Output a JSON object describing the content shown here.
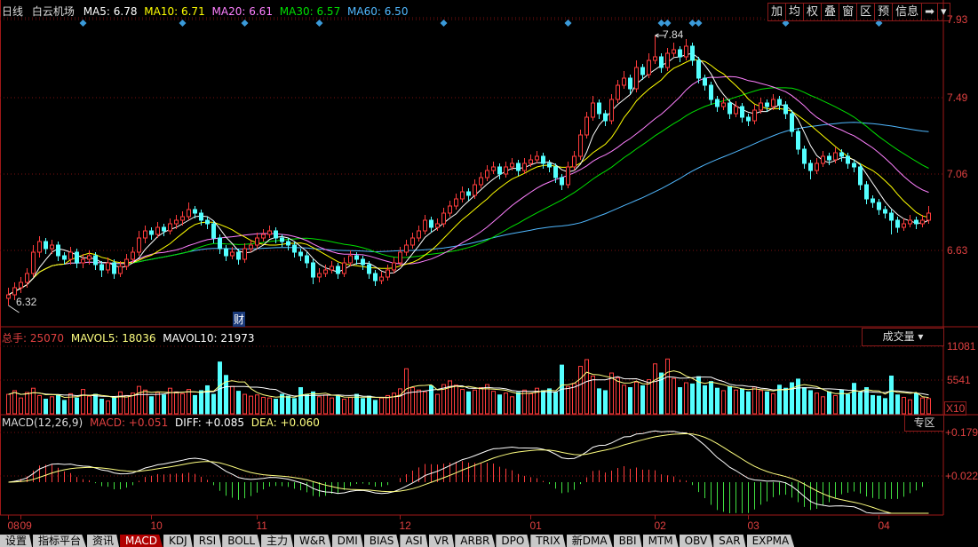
{
  "header": {
    "period": "日线",
    "stock_name": "白云机场",
    "ma5": "MA5: 6.78",
    "ma10": "MA10: 6.71",
    "ma20": "MA20: 6.61",
    "ma30": "MA30: 6.57",
    "ma60": "MA60: 6.50"
  },
  "toolbar": [
    "加",
    "均",
    "权",
    "叠",
    "窗",
    "区",
    "预",
    "信息",
    "➡",
    "▾"
  ],
  "volume_header": {
    "total": "总手: 25070",
    "mavol5": "MAVOL5: 18036",
    "mavol10": "MAVOL10: 21973",
    "selector": "成交量 ▾"
  },
  "macd_header": {
    "name": "MACD(12,26,9)",
    "macd": "MACD: +0.051",
    "diff": "DIFF: +0.085",
    "dea": "DEA: +0.060",
    "zone_button": "专区"
  },
  "annotations": {
    "high": "7.84",
    "low": "6.32",
    "news_marker": "财"
  },
  "tabs": [
    {
      "label": "设置",
      "active": false
    },
    {
      "label": "指标平台",
      "active": false
    },
    {
      "label": "资讯",
      "active": false
    },
    {
      "label": "MACD",
      "active": true
    },
    {
      "label": "KDJ",
      "active": false
    },
    {
      "label": "RSI",
      "active": false
    },
    {
      "label": "BOLL",
      "active": false
    },
    {
      "label": "主力",
      "active": false
    },
    {
      "label": "W&R",
      "active": false
    },
    {
      "label": "DMI",
      "active": false
    },
    {
      "label": "BIAS",
      "active": false
    },
    {
      "label": "ASI",
      "active": false
    },
    {
      "label": "VR",
      "active": false
    },
    {
      "label": "ARBR",
      "active": false
    },
    {
      "label": "DPO",
      "active": false
    },
    {
      "label": "TRIX",
      "active": false
    },
    {
      "label": "新DMA",
      "active": false
    },
    {
      "label": "BBI",
      "active": false
    },
    {
      "label": "MTM",
      "active": false
    },
    {
      "label": "OBV",
      "active": false
    },
    {
      "label": "SAR",
      "active": false
    },
    {
      "label": "EXPMA",
      "active": false
    }
  ],
  "colors": {
    "up": "#ff3c3c",
    "down": "#54ffff",
    "ma5": "#ffffff",
    "ma10": "#ffff00",
    "ma20": "#ff80ff",
    "ma30": "#00e000",
    "ma60": "#50b8ff",
    "grid": "#7a1010",
    "axis_text": "#e04040",
    "marker": "#3a9ad9"
  },
  "chart_data": {
    "type": "candlestick",
    "price_axis": {
      "ticks": [
        "7.93",
        "7.49",
        "7.06",
        "6.63"
      ],
      "range": [
        6.2,
        7.93
      ]
    },
    "volume_axis": {
      "ticks": [
        "11081",
        "5541"
      ],
      "unit": "X10",
      "range": [
        0,
        11081
      ]
    },
    "macd_axis": {
      "ticks": [
        "+0.179",
        "+0.022"
      ],
      "range": [
        -0.12,
        0.179
      ]
    },
    "month_labels": [
      {
        "label": "08",
        "index": 0
      },
      {
        "label": "09",
        "index": 2
      },
      {
        "label": "10",
        "index": 23
      },
      {
        "label": "11",
        "index": 40
      },
      {
        "label": "12",
        "index": 63
      },
      {
        "label": "01",
        "index": 84
      },
      {
        "label": "02",
        "index": 104
      },
      {
        "label": "03",
        "index": 119
      },
      {
        "label": "04",
        "index": 140
      }
    ],
    "marker_indices": [
      12,
      28,
      38,
      50,
      70,
      90,
      105,
      106,
      110,
      111,
      125,
      140
    ],
    "news_marker_index": 38,
    "high_index": 104,
    "low_index": 0,
    "ma_periods": [
      5,
      10,
      20,
      30,
      60
    ],
    "ohlc": [
      [
        6.36,
        6.42,
        6.32,
        6.38
      ],
      [
        6.38,
        6.45,
        6.35,
        6.42
      ],
      [
        6.42,
        6.48,
        6.39,
        6.45
      ],
      [
        6.45,
        6.53,
        6.42,
        6.5
      ],
      [
        6.5,
        6.66,
        6.48,
        6.62
      ],
      [
        6.62,
        6.71,
        6.59,
        6.68
      ],
      [
        6.68,
        6.7,
        6.61,
        6.64
      ],
      [
        6.64,
        6.69,
        6.61,
        6.66
      ],
      [
        6.66,
        6.68,
        6.57,
        6.6
      ],
      [
        6.6,
        6.62,
        6.55,
        6.58
      ],
      [
        6.58,
        6.65,
        6.55,
        6.62
      ],
      [
        6.62,
        6.64,
        6.53,
        6.56
      ],
      [
        6.56,
        6.61,
        6.53,
        6.58
      ],
      [
        6.58,
        6.63,
        6.55,
        6.6
      ],
      [
        6.6,
        6.62,
        6.52,
        6.55
      ],
      [
        6.55,
        6.57,
        6.48,
        6.52
      ],
      [
        6.52,
        6.59,
        6.5,
        6.56
      ],
      [
        6.56,
        6.58,
        6.47,
        6.5
      ],
      [
        6.5,
        6.57,
        6.48,
        6.54
      ],
      [
        6.54,
        6.61,
        6.52,
        6.58
      ],
      [
        6.58,
        6.65,
        6.56,
        6.62
      ],
      [
        6.62,
        6.74,
        6.6,
        6.7
      ],
      [
        6.7,
        6.77,
        6.67,
        6.74
      ],
      [
        6.74,
        6.76,
        6.69,
        6.72
      ],
      [
        6.72,
        6.79,
        6.7,
        6.76
      ],
      [
        6.76,
        6.78,
        6.71,
        6.74
      ],
      [
        6.74,
        6.81,
        6.72,
        6.78
      ],
      [
        6.78,
        6.83,
        6.75,
        6.8
      ],
      [
        6.8,
        6.85,
        6.77,
        6.82
      ],
      [
        6.82,
        6.9,
        6.8,
        6.86
      ],
      [
        6.86,
        6.88,
        6.81,
        6.84
      ],
      [
        6.84,
        6.86,
        6.77,
        6.8
      ],
      [
        6.8,
        6.82,
        6.75,
        6.78
      ],
      [
        6.78,
        6.8,
        6.67,
        6.7
      ],
      [
        6.7,
        6.72,
        6.61,
        6.64
      ],
      [
        6.64,
        6.66,
        6.57,
        6.6
      ],
      [
        6.6,
        6.65,
        6.58,
        6.62
      ],
      [
        6.62,
        6.64,
        6.55,
        6.58
      ],
      [
        6.58,
        6.67,
        6.56,
        6.64
      ],
      [
        6.64,
        6.69,
        6.62,
        6.66
      ],
      [
        6.66,
        6.73,
        6.64,
        6.7
      ],
      [
        6.7,
        6.75,
        6.68,
        6.72
      ],
      [
        6.72,
        6.77,
        6.7,
        6.74
      ],
      [
        6.74,
        6.76,
        6.67,
        6.7
      ],
      [
        6.7,
        6.72,
        6.65,
        6.68
      ],
      [
        6.68,
        6.7,
        6.63,
        6.66
      ],
      [
        6.66,
        6.68,
        6.59,
        6.62
      ],
      [
        6.62,
        6.64,
        6.57,
        6.6
      ],
      [
        6.6,
        6.62,
        6.53,
        6.56
      ],
      [
        6.56,
        6.58,
        6.44,
        6.48
      ],
      [
        6.48,
        6.53,
        6.45,
        6.5
      ],
      [
        6.5,
        6.55,
        6.48,
        6.52
      ],
      [
        6.52,
        6.57,
        6.5,
        6.54
      ],
      [
        6.54,
        6.56,
        6.47,
        6.5
      ],
      [
        6.5,
        6.59,
        6.48,
        6.56
      ],
      [
        6.56,
        6.63,
        6.54,
        6.6
      ],
      [
        6.6,
        6.62,
        6.55,
        6.58
      ],
      [
        6.58,
        6.6,
        6.52,
        6.55
      ],
      [
        6.55,
        6.57,
        6.47,
        6.5
      ],
      [
        6.5,
        6.52,
        6.43,
        6.46
      ],
      [
        6.46,
        6.51,
        6.44,
        6.48
      ],
      [
        6.48,
        6.55,
        6.46,
        6.52
      ],
      [
        6.52,
        6.59,
        6.5,
        6.56
      ],
      [
        6.56,
        6.65,
        6.54,
        6.62
      ],
      [
        6.62,
        6.69,
        6.6,
        6.66
      ],
      [
        6.66,
        6.73,
        6.64,
        6.7
      ],
      [
        6.7,
        6.77,
        6.68,
        6.74
      ],
      [
        6.74,
        6.83,
        6.72,
        6.8
      ],
      [
        6.8,
        6.82,
        6.73,
        6.76
      ],
      [
        6.76,
        6.81,
        6.74,
        6.78
      ],
      [
        6.78,
        6.87,
        6.76,
        6.84
      ],
      [
        6.84,
        6.91,
        6.82,
        6.88
      ],
      [
        6.88,
        6.95,
        6.86,
        6.92
      ],
      [
        6.92,
        6.99,
        6.9,
        6.96
      ],
      [
        6.96,
        6.98,
        6.91,
        6.94
      ],
      [
        6.94,
        7.03,
        6.92,
        7.0
      ],
      [
        7.0,
        7.07,
        6.98,
        7.04
      ],
      [
        7.04,
        7.11,
        7.02,
        7.08
      ],
      [
        7.08,
        7.13,
        7.06,
        7.1
      ],
      [
        7.1,
        7.12,
        7.03,
        7.06
      ],
      [
        7.06,
        7.13,
        7.04,
        7.1
      ],
      [
        7.1,
        7.15,
        7.08,
        7.12
      ],
      [
        7.12,
        7.14,
        7.05,
        7.08
      ],
      [
        7.08,
        7.15,
        7.06,
        7.12
      ],
      [
        7.12,
        7.17,
        7.1,
        7.14
      ],
      [
        7.14,
        7.19,
        7.12,
        7.16
      ],
      [
        7.16,
        7.18,
        7.09,
        7.12
      ],
      [
        7.12,
        7.14,
        7.07,
        7.1
      ],
      [
        7.1,
        7.12,
        7.01,
        7.04
      ],
      [
        7.04,
        7.06,
        6.97,
        7.0
      ],
      [
        7.0,
        7.13,
        6.98,
        7.1
      ],
      [
        7.1,
        7.19,
        7.08,
        7.16
      ],
      [
        7.16,
        7.31,
        7.14,
        7.28
      ],
      [
        7.28,
        7.41,
        7.26,
        7.38
      ],
      [
        7.38,
        7.5,
        7.36,
        7.46
      ],
      [
        7.46,
        7.48,
        7.37,
        7.4
      ],
      [
        7.4,
        7.42,
        7.33,
        7.36
      ],
      [
        7.36,
        7.51,
        7.34,
        7.48
      ],
      [
        7.48,
        7.59,
        7.46,
        7.56
      ],
      [
        7.56,
        7.64,
        7.54,
        7.6
      ],
      [
        7.6,
        7.62,
        7.51,
        7.54
      ],
      [
        7.54,
        7.7,
        7.52,
        7.66
      ],
      [
        7.66,
        7.68,
        7.59,
        7.62
      ],
      [
        7.62,
        7.74,
        7.6,
        7.7
      ],
      [
        7.7,
        7.84,
        7.68,
        7.72
      ],
      [
        7.72,
        7.74,
        7.63,
        7.66
      ],
      [
        7.66,
        7.77,
        7.64,
        7.74
      ],
      [
        7.74,
        7.8,
        7.72,
        7.76
      ],
      [
        7.76,
        7.78,
        7.69,
        7.72
      ],
      [
        7.72,
        7.82,
        7.7,
        7.78
      ],
      [
        7.78,
        7.8,
        7.67,
        7.7
      ],
      [
        7.7,
        7.72,
        7.57,
        7.6
      ],
      [
        7.6,
        7.62,
        7.53,
        7.56
      ],
      [
        7.56,
        7.58,
        7.45,
        7.48
      ],
      [
        7.48,
        7.5,
        7.41,
        7.44
      ],
      [
        7.44,
        7.49,
        7.42,
        7.46
      ],
      [
        7.46,
        7.48,
        7.37,
        7.4
      ],
      [
        7.4,
        7.47,
        7.38,
        7.44
      ],
      [
        7.44,
        7.46,
        7.35,
        7.38
      ],
      [
        7.38,
        7.4,
        7.33,
        7.36
      ],
      [
        7.36,
        7.45,
        7.34,
        7.42
      ],
      [
        7.42,
        7.49,
        7.4,
        7.46
      ],
      [
        7.46,
        7.48,
        7.41,
        7.44
      ],
      [
        7.44,
        7.51,
        7.42,
        7.48
      ],
      [
        7.48,
        7.5,
        7.42,
        7.45
      ],
      [
        7.45,
        7.47,
        7.37,
        7.4
      ],
      [
        7.4,
        7.42,
        7.27,
        7.3
      ],
      [
        7.3,
        7.32,
        7.17,
        7.2
      ],
      [
        7.2,
        7.22,
        7.09,
        7.12
      ],
      [
        7.12,
        7.14,
        7.03,
        7.08
      ],
      [
        7.08,
        7.15,
        7.06,
        7.12
      ],
      [
        7.12,
        7.19,
        7.1,
        7.16
      ],
      [
        7.16,
        7.18,
        7.11,
        7.14
      ],
      [
        7.14,
        7.21,
        7.12,
        7.18
      ],
      [
        7.18,
        7.2,
        7.13,
        7.16
      ],
      [
        7.16,
        7.18,
        7.09,
        7.12
      ],
      [
        7.12,
        7.14,
        7.07,
        7.1
      ],
      [
        7.1,
        7.12,
        6.97,
        7.0
      ],
      [
        7.0,
        7.02,
        6.89,
        6.92
      ],
      [
        6.92,
        6.94,
        6.87,
        6.9
      ],
      [
        6.9,
        6.92,
        6.83,
        6.86
      ],
      [
        6.86,
        6.88,
        6.81,
        6.84
      ],
      [
        6.84,
        6.86,
        6.72,
        6.8
      ],
      [
        6.8,
        6.82,
        6.73,
        6.76
      ],
      [
        6.76,
        6.81,
        6.74,
        6.78
      ],
      [
        6.78,
        6.83,
        6.76,
        6.8
      ],
      [
        6.8,
        6.82,
        6.75,
        6.78
      ],
      [
        6.78,
        6.83,
        6.76,
        6.8
      ],
      [
        6.8,
        6.88,
        6.78,
        6.84
      ]
    ],
    "volume_x10": [
      3200,
      3800,
      2600,
      3500,
      4200,
      3000,
      2400,
      2800,
      3100,
      2200,
      3300,
      2600,
      4000,
      2900,
      3200,
      2400,
      2100,
      2700,
      3600,
      3000,
      3400,
      4500,
      3900,
      2800,
      3500,
      3100,
      4200,
      3600,
      3300,
      4000,
      3000,
      3800,
      4600,
      3200,
      8500,
      6300,
      4500,
      3700,
      3200,
      2900,
      3100,
      2700,
      2600,
      2400,
      3200,
      2900,
      2500,
      4300,
      3200,
      3600,
      2800,
      3100,
      2600,
      2900,
      2400,
      2700,
      3200,
      2500,
      2900,
      2200,
      2600,
      3000,
      3400,
      4100,
      7400,
      4300,
      3900,
      3600,
      4600,
      3200,
      4800,
      5400,
      4700,
      4000,
      3600,
      3900,
      4300,
      4800,
      3700,
      3100,
      3400,
      2800,
      3500,
      3900,
      3300,
      4200,
      3800,
      4100,
      3500,
      8000,
      4500,
      5000,
      7800,
      8900,
      6200,
      4100,
      3800,
      6700,
      5900,
      4700,
      4300,
      5200,
      4600,
      5600,
      8200,
      6700,
      9000,
      5800,
      4300,
      5100,
      4900,
      6100,
      4600,
      5300,
      4200,
      3800,
      4500,
      3900,
      4100,
      3600,
      4400,
      3800,
      3600,
      3300,
      4700,
      4200,
      5100,
      5700,
      4300,
      3800,
      3400,
      2800,
      3600,
      3000,
      3900,
      3200,
      5000,
      3500,
      4300,
      3000,
      2900,
      2500,
      6200,
      3100,
      2700,
      2300,
      3300,
      2600,
      2507
    ]
  }
}
